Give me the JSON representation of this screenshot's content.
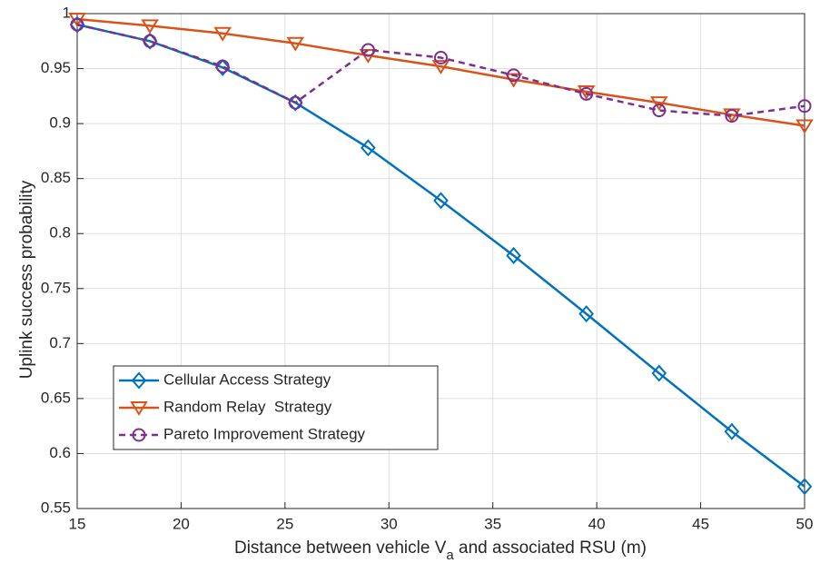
{
  "chart_data": {
    "type": "line",
    "xlabel": [
      "Distance between vehicle V",
      "a",
      " and associated RSU (m)"
    ],
    "ylabel": "Uplink success probability",
    "x": [
      15,
      18.5,
      22,
      25.5,
      29,
      32.5,
      36,
      39.5,
      43,
      46.5,
      50
    ],
    "series": [
      {
        "name": "Cellular Access Strategy",
        "color": "#0072BD",
        "marker": "diamond",
        "linestyle": "-",
        "values": [
          0.99,
          0.975,
          0.951,
          0.919,
          0.878,
          0.83,
          0.78,
          0.727,
          0.673,
          0.62,
          0.57
        ]
      },
      {
        "name": "Random Relay  Strategy",
        "color": "#D95319",
        "marker": "triangle-down",
        "linestyle": "-",
        "values": [
          0.995,
          0.989,
          0.982,
          0.973,
          0.962,
          0.952,
          0.94,
          0.929,
          0.919,
          0.908,
          0.898
        ]
      },
      {
        "name": "Pareto Improvement Strategy",
        "color": "#7E2F8E",
        "marker": "circle",
        "linestyle": "--",
        "values": [
          0.99,
          0.975,
          0.952,
          0.919,
          0.967,
          0.96,
          0.944,
          0.927,
          0.912,
          0.907,
          0.916
        ]
      }
    ],
    "xlim": [
      15,
      50
    ],
    "xticks": [
      15,
      20,
      25,
      30,
      35,
      40,
      45,
      50
    ],
    "ylim": [
      0.55,
      1
    ],
    "yticks": [
      0.55,
      0.6,
      0.65,
      0.7,
      0.75,
      0.8,
      0.85,
      0.9,
      0.95,
      1
    ],
    "grid": true,
    "legend": "lower left"
  }
}
